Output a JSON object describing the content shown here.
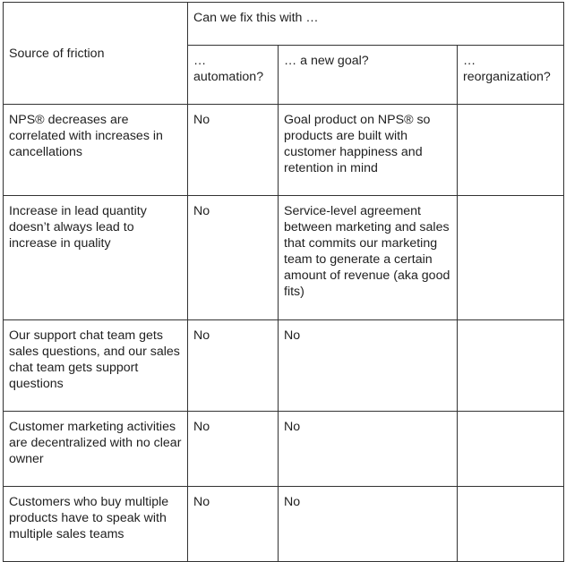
{
  "table": {
    "header": {
      "source_label": "Source of friction",
      "group_label": "Can we fix this with …",
      "sub_headers": [
        "… automation?",
        "… a new goal?",
        "… reorganization?"
      ]
    },
    "rows": [
      {
        "source": "NPS® decreases are correlated with increases in cancellations",
        "automation": "No",
        "new_goal": "Goal product on NPS® so products are built with customer happiness and retention in mind",
        "reorganization": ""
      },
      {
        "source": "Increase in lead quantity doesn’t always lead to increase in quality",
        "automation": "No",
        "new_goal": "Service-level agreement between marketing and sales that commits our marketing team to generate a certain amount of revenue (aka good fits)",
        "reorganization": ""
      },
      {
        "source": "Our support chat team gets sales questions, and our sales chat team gets support questions",
        "automation": "No",
        "new_goal": "No",
        "reorganization": ""
      },
      {
        "source": "Customer marketing activities are decentralized with no clear owner",
        "automation": "No",
        "new_goal": "No",
        "reorganization": ""
      },
      {
        "source": "Customers who buy multiple products have to speak with multiple sales teams",
        "automation": "No",
        "new_goal": "No",
        "reorganization": ""
      }
    ]
  }
}
